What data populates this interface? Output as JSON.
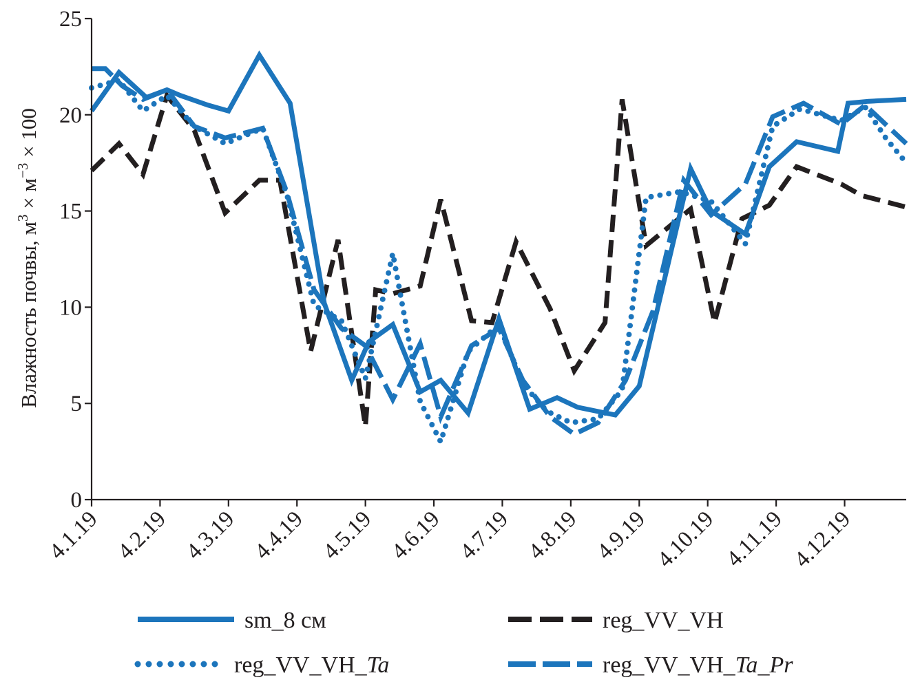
{
  "chart_data": {
    "type": "line",
    "title": "",
    "xlabel": "",
    "ylabel": "Влажность почвы, м³ × м⁻³ × 100",
    "ylabel_parts": {
      "base": "Влажность почвы, м",
      "sup1": "3",
      "mid": " × м",
      "sup2": "−3",
      "tail": " × 100"
    },
    "ylim": [
      0,
      25
    ],
    "yticks": [
      0,
      5,
      10,
      15,
      20,
      25
    ],
    "xlim": [
      0,
      11.9
    ],
    "xticks": [
      {
        "x": 0,
        "label": "4.1.19"
      },
      {
        "x": 1,
        "label": "4.2.19"
      },
      {
        "x": 2,
        "label": "4.3.19"
      },
      {
        "x": 3,
        "label": "4.4.19"
      },
      {
        "x": 4,
        "label": "4.5.19"
      },
      {
        "x": 5,
        "label": "4.6.19"
      },
      {
        "x": 6,
        "label": "4.7.19"
      },
      {
        "x": 7,
        "label": "4.8.19"
      },
      {
        "x": 8,
        "label": "4.9.19"
      },
      {
        "x": 9,
        "label": "4.10.19"
      },
      {
        "x": 10,
        "label": "4.11.19"
      },
      {
        "x": 11,
        "label": "4.12.19"
      }
    ],
    "grid": false,
    "legend_position": "bottom",
    "series": [
      {
        "name": "sm_8 см",
        "name_parts": {
          "prefix": "sm_8 см",
          "italic": "",
          "mid": "",
          "italic2": ""
        },
        "color": "#1c75bc",
        "style": "solid",
        "x": [
          0,
          0.4,
          0.8,
          1.1,
          1.3,
          1.7,
          2.0,
          2.45,
          2.9,
          3.4,
          3.8,
          4.05,
          4.4,
          4.8,
          5.1,
          5.5,
          5.95,
          6.4,
          6.8,
          7.1,
          7.65,
          8.0,
          8.75,
          9.05,
          9.55,
          9.9,
          10.3,
          10.9,
          11.05,
          11.35,
          11.9
        ],
        "y": [
          20.2,
          22.2,
          20.9,
          21.3,
          21.0,
          20.5,
          20.2,
          23.1,
          20.6,
          10.2,
          6.2,
          8.2,
          9.1,
          5.6,
          6.2,
          4.5,
          9.4,
          4.7,
          5.3,
          4.8,
          4.4,
          5.9,
          17.2,
          15.0,
          13.8,
          17.3,
          18.6,
          18.1,
          20.6,
          20.7,
          20.8
        ]
      },
      {
        "name": "reg_VV_VH",
        "name_parts": {
          "prefix": "reg_VV_VH",
          "italic": "",
          "mid": "",
          "italic2": ""
        },
        "color": "#231f20",
        "style": "dashed",
        "x": [
          0,
          0.4,
          0.75,
          1.1,
          1.5,
          1.95,
          2.45,
          2.75,
          3.2,
          3.6,
          4.0,
          4.15,
          4.4,
          4.8,
          5.1,
          5.55,
          5.85,
          6.2,
          6.7,
          7.05,
          7.5,
          7.75,
          8.1,
          8.75,
          9.1,
          9.5,
          9.9,
          10.3,
          10.95,
          11.25,
          11.9
        ],
        "y": [
          17.1,
          18.5,
          16.9,
          21.0,
          19.2,
          14.9,
          16.6,
          16.6,
          7.7,
          13.5,
          3.8,
          10.9,
          10.7,
          11.1,
          15.6,
          9.3,
          9.2,
          13.4,
          9.9,
          6.7,
          9.2,
          20.8,
          13.2,
          15.1,
          9.2,
          14.6,
          15.3,
          17.3,
          16.4,
          15.8,
          15.2
        ]
      },
      {
        "name": "reg_VV_VH_Ta",
        "name_parts": {
          "prefix": "reg_VV_VH_",
          "italic": "Ta",
          "mid": "",
          "italic2": ""
        },
        "color": "#1c75bc",
        "style": "dotted",
        "x": [
          0,
          0.4,
          0.75,
          1.1,
          1.5,
          1.95,
          2.5,
          2.85,
          3.25,
          3.65,
          4.0,
          4.4,
          4.8,
          5.1,
          5.5,
          5.95,
          6.3,
          6.65,
          7.0,
          7.4,
          7.75,
          8.1,
          8.6,
          9.05,
          9.55,
          9.95,
          10.35,
          10.95,
          11.3,
          11.6,
          11.9
        ],
        "y": [
          21.4,
          21.8,
          20.2,
          21.0,
          19.4,
          18.5,
          19.3,
          15.9,
          10.1,
          9.3,
          6.3,
          12.8,
          5.1,
          3.0,
          7.7,
          9.1,
          6.0,
          4.6,
          4.0,
          4.2,
          5.7,
          15.7,
          16.0,
          15.5,
          13.3,
          19.4,
          20.3,
          19.7,
          20.4,
          18.8,
          17.5
        ]
      },
      {
        "name": "reg_VV_VH_Ta_Pr",
        "name_parts": {
          "prefix": "reg_VV_VH_",
          "italic": "Ta",
          "mid": "_",
          "italic2": "Pr"
        },
        "color": "#1c75bc",
        "style": "longdash",
        "x": [
          0,
          0.2,
          0.45,
          0.75,
          1.1,
          1.5,
          1.95,
          2.5,
          2.85,
          3.25,
          3.65,
          4.0,
          4.4,
          4.8,
          5.1,
          5.55,
          5.95,
          6.3,
          6.7,
          7.05,
          7.4,
          7.8,
          8.2,
          8.65,
          9.05,
          9.55,
          9.95,
          10.4,
          10.95,
          11.3,
          11.6,
          11.9
        ],
        "y": [
          22.4,
          22.4,
          21.5,
          20.8,
          21.3,
          19.4,
          18.8,
          19.3,
          16.0,
          10.9,
          8.9,
          8.0,
          5.2,
          8.1,
          4.3,
          8.0,
          8.9,
          6.2,
          4.3,
          3.4,
          4.0,
          6.2,
          9.8,
          16.6,
          14.8,
          16.4,
          19.9,
          20.6,
          19.5,
          20.5,
          19.5,
          18.5
        ]
      }
    ]
  }
}
